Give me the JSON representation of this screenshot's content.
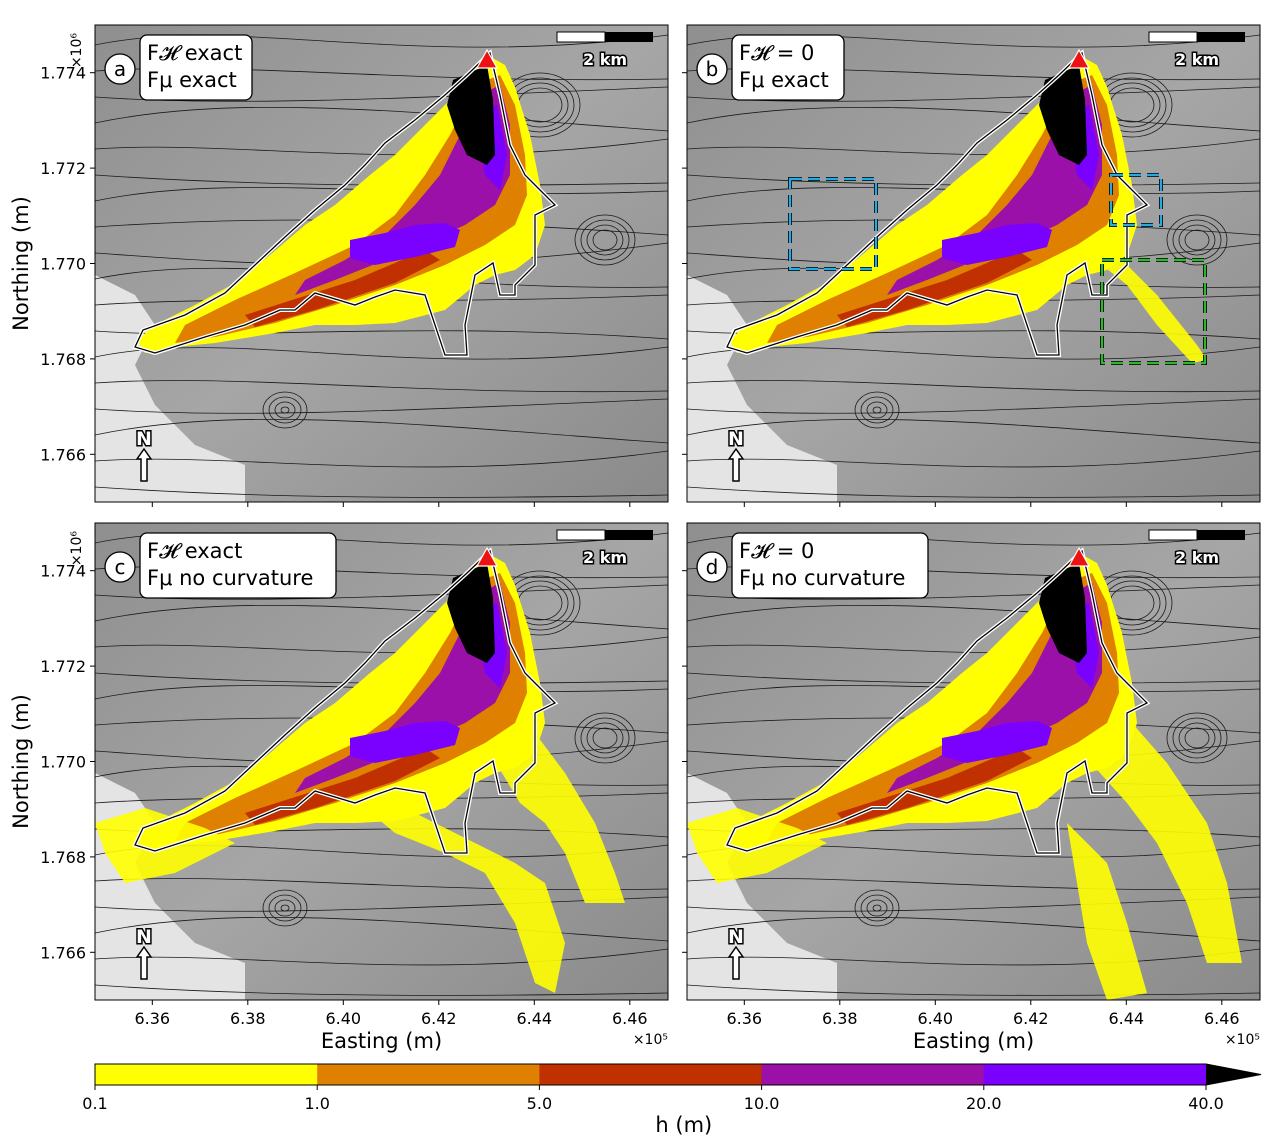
{
  "chart_data": {
    "type": "heatmap",
    "xlabel": "Easting (m)",
    "ylabel": "Northing (m)",
    "x_offset_label": "×10⁵",
    "y_offset_label": "×10⁶",
    "xlim": [
      6.348,
      6.468
    ],
    "ylim": [
      1.765,
      1.775
    ],
    "xticks": [
      "6.36",
      "6.38",
      "6.40",
      "6.42",
      "6.44",
      "6.46"
    ],
    "yticks": [
      "1.766",
      "1.768",
      "1.770",
      "1.772",
      "1.774"
    ],
    "scalebar_label": "2 km",
    "north_label": "N",
    "panels": [
      {
        "letter": "a",
        "line1": "F𝓗 exact",
        "line2": "Fμ exact"
      },
      {
        "letter": "b",
        "line1": "F𝓗 = 0",
        "line2": "Fμ exact"
      },
      {
        "letter": "c",
        "line1": "F𝓗 exact",
        "line2": "Fμ no curvature"
      },
      {
        "letter": "d",
        "line1": "F𝓗 = 0",
        "line2": "Fμ no curvature"
      }
    ],
    "colorbar": {
      "label": "h (m)",
      "ticks": [
        "0.1",
        "1.0",
        "5.0",
        "10.0",
        "20.0",
        "40.0"
      ],
      "bins": [
        {
          "from": 0.1,
          "to": 1.0,
          "color": "#ffff00"
        },
        {
          "from": 1.0,
          "to": 5.0,
          "color": "#e08000"
        },
        {
          "from": 5.0,
          "to": 10.0,
          "color": "#c03000"
        },
        {
          "from": 10.0,
          "to": 20.0,
          "color": "#9a10a8"
        },
        {
          "from": 20.0,
          "to": 40.0,
          "color": "#7a00ff"
        },
        {
          "from": 40.0,
          "to": null,
          "color": "#000000"
        }
      ]
    }
  }
}
